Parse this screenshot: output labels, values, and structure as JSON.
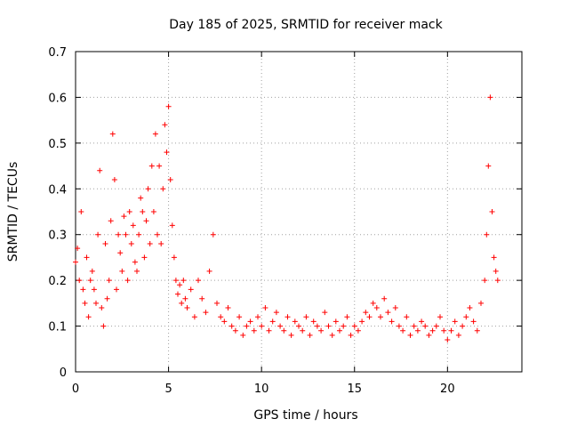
{
  "chart_data": {
    "type": "scatter",
    "title": "Day 185 of 2025, SRMTID for receiver mack",
    "xlabel": "GPS time / hours",
    "ylabel": "SRMTID / TECUs",
    "xlim": [
      0,
      24
    ],
    "ylim": [
      0,
      0.7
    ],
    "xticks": [
      0,
      5,
      10,
      15,
      20
    ],
    "xtick_labels": [
      "0",
      "5",
      "10",
      "15",
      "20"
    ],
    "yticks": [
      0,
      0.1,
      0.2,
      0.3,
      0.4,
      0.5,
      0.6,
      0.7
    ],
    "ytick_labels": [
      "0",
      "0.1",
      "0.2",
      "0.3",
      "0.4",
      "0.5",
      "0.6",
      "0.7"
    ],
    "grid": true,
    "marker": "plus",
    "marker_color": "#ff0000",
    "series": [
      {
        "name": "SRMTID",
        "x": [
          0.0,
          0.1,
          0.2,
          0.3,
          0.4,
          0.5,
          0.6,
          0.7,
          0.8,
          0.9,
          1.0,
          1.1,
          1.2,
          1.3,
          1.4,
          1.5,
          1.6,
          1.7,
          1.8,
          1.9,
          2.0,
          2.1,
          2.2,
          2.3,
          2.4,
          2.5,
          2.6,
          2.7,
          2.8,
          2.9,
          3.0,
          3.1,
          3.2,
          3.3,
          3.4,
          3.5,
          3.6,
          3.7,
          3.8,
          3.9,
          4.0,
          4.1,
          4.2,
          4.3,
          4.4,
          4.5,
          4.6,
          4.7,
          4.8,
          4.9,
          5.0,
          5.1,
          5.2,
          5.3,
          5.4,
          5.5,
          5.6,
          5.7,
          5.8,
          5.9,
          6.0,
          6.2,
          6.4,
          6.6,
          6.8,
          7.0,
          7.2,
          7.4,
          7.6,
          7.8,
          8.0,
          8.2,
          8.4,
          8.6,
          8.8,
          9.0,
          9.2,
          9.4,
          9.6,
          9.8,
          10.0,
          10.2,
          10.4,
          10.6,
          10.8,
          11.0,
          11.2,
          11.4,
          11.6,
          11.8,
          12.0,
          12.2,
          12.4,
          12.6,
          12.8,
          13.0,
          13.2,
          13.4,
          13.6,
          13.8,
          14.0,
          14.2,
          14.4,
          14.6,
          14.8,
          15.0,
          15.2,
          15.4,
          15.6,
          15.8,
          16.0,
          16.2,
          16.4,
          16.6,
          16.8,
          17.0,
          17.2,
          17.4,
          17.6,
          17.8,
          18.0,
          18.2,
          18.4,
          18.6,
          18.8,
          19.0,
          19.2,
          19.4,
          19.6,
          19.8,
          20.0,
          20.2,
          20.4,
          20.6,
          20.8,
          21.0,
          21.2,
          21.4,
          21.6,
          21.8,
          22.0,
          22.1,
          22.2,
          22.3,
          22.4,
          22.5,
          22.6,
          22.7
        ],
        "y": [
          0.24,
          0.27,
          0.2,
          0.35,
          0.18,
          0.15,
          0.25,
          0.12,
          0.2,
          0.22,
          0.18,
          0.15,
          0.3,
          0.44,
          0.14,
          0.1,
          0.28,
          0.16,
          0.2,
          0.33,
          0.52,
          0.42,
          0.18,
          0.3,
          0.26,
          0.22,
          0.34,
          0.3,
          0.2,
          0.35,
          0.28,
          0.32,
          0.24,
          0.22,
          0.3,
          0.38,
          0.35,
          0.25,
          0.33,
          0.4,
          0.28,
          0.45,
          0.35,
          0.52,
          0.3,
          0.45,
          0.28,
          0.4,
          0.54,
          0.48,
          0.58,
          0.42,
          0.32,
          0.25,
          0.2,
          0.17,
          0.19,
          0.15,
          0.2,
          0.16,
          0.14,
          0.18,
          0.12,
          0.2,
          0.16,
          0.13,
          0.22,
          0.3,
          0.15,
          0.12,
          0.11,
          0.14,
          0.1,
          0.09,
          0.12,
          0.08,
          0.1,
          0.11,
          0.09,
          0.12,
          0.1,
          0.14,
          0.09,
          0.11,
          0.13,
          0.1,
          0.09,
          0.12,
          0.08,
          0.11,
          0.1,
          0.09,
          0.12,
          0.08,
          0.11,
          0.1,
          0.09,
          0.13,
          0.1,
          0.08,
          0.11,
          0.09,
          0.1,
          0.12,
          0.08,
          0.1,
          0.09,
          0.11,
          0.13,
          0.12,
          0.15,
          0.14,
          0.12,
          0.16,
          0.13,
          0.11,
          0.14,
          0.1,
          0.09,
          0.12,
          0.08,
          0.1,
          0.09,
          0.11,
          0.1,
          0.08,
          0.09,
          0.1,
          0.12,
          0.09,
          0.07,
          0.09,
          0.11,
          0.08,
          0.1,
          0.12,
          0.14,
          0.11,
          0.09,
          0.15,
          0.2,
          0.3,
          0.45,
          0.6,
          0.35,
          0.25,
          0.22,
          0.2
        ]
      }
    ]
  }
}
